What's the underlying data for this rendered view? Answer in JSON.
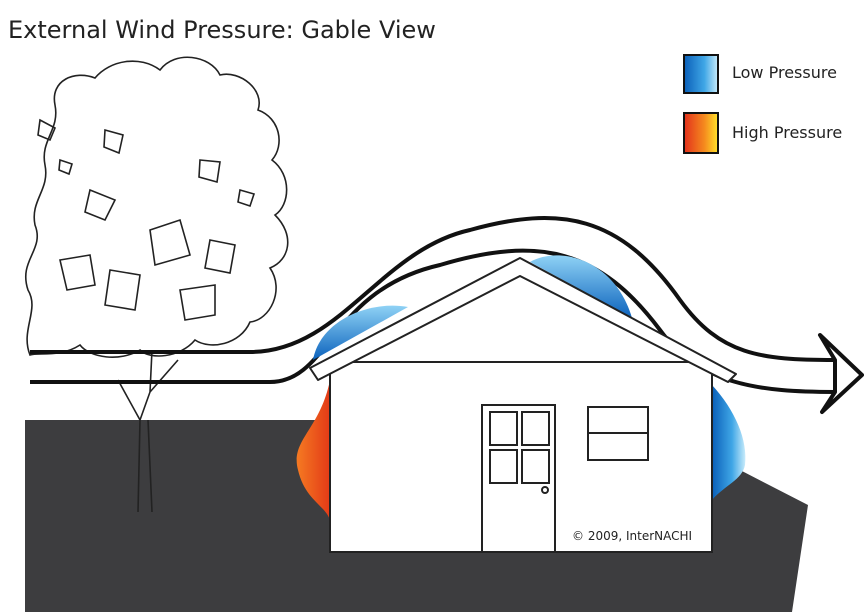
{
  "header": {
    "title": "External Wind Pressure: Gable View"
  },
  "legend": {
    "items": [
      {
        "label": "Low Pressure"
      },
      {
        "label": "High Pressure"
      }
    ]
  },
  "credit": "© 2009, InterNACHI"
}
